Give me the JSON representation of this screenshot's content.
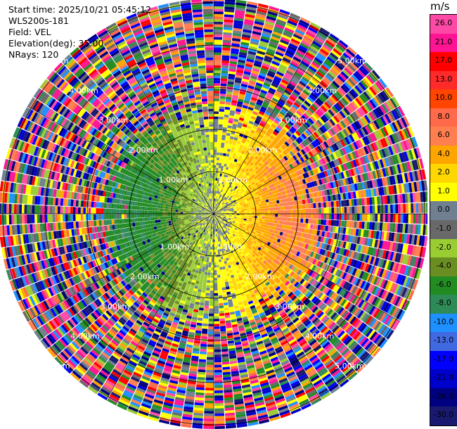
{
  "info": {
    "start_time": "Start time: 2025/10/21 05:45:12",
    "station": "WLS200s-181",
    "field": "Field: VEL",
    "elevation": "Elevation(deg): 35.00",
    "nrays": "NRays: 120"
  },
  "colorbar": {
    "unit": "m/s",
    "ticks": [
      "26.0",
      "21.0",
      "17.0",
      "13.0",
      "10.0",
      "8.0",
      "6.0",
      "4.0",
      "2.0",
      "1.0",
      "0.0",
      "-1.0",
      "-2.0",
      "-4.0",
      "-6.0",
      "-8.0",
      "-10.0",
      "-13.0",
      "-17.0",
      "-21.0",
      "-26.0",
      "-30.0"
    ],
    "colors": [
      "#ff49a6",
      "#ff1493",
      "#ff0000",
      "#ff2a2a",
      "#ff4500",
      "#ff6a4a",
      "#ff7f50",
      "#ffa500",
      "#ffd700",
      "#ffff00",
      "#708090",
      "#696969",
      "#9acd32",
      "#6b8e23",
      "#228b22",
      "#2e8b57",
      "#1e90ff",
      "#4169e1",
      "#0000ff",
      "#0000cd",
      "#000080",
      "#191970"
    ]
  },
  "chart_data": {
    "type": "heatmap",
    "projection": "PPI",
    "field": "VEL",
    "rays": 120,
    "range_rings_km": [
      1.0,
      2.0,
      3.0,
      4.0,
      5.0
    ],
    "ring_labels": [
      "1.00km",
      "2.00km",
      "3.00km",
      "4.00km",
      "5.00km"
    ],
    "max_range_km": 5.1,
    "value_range": [
      -30.0,
      26.0
    ]
  }
}
